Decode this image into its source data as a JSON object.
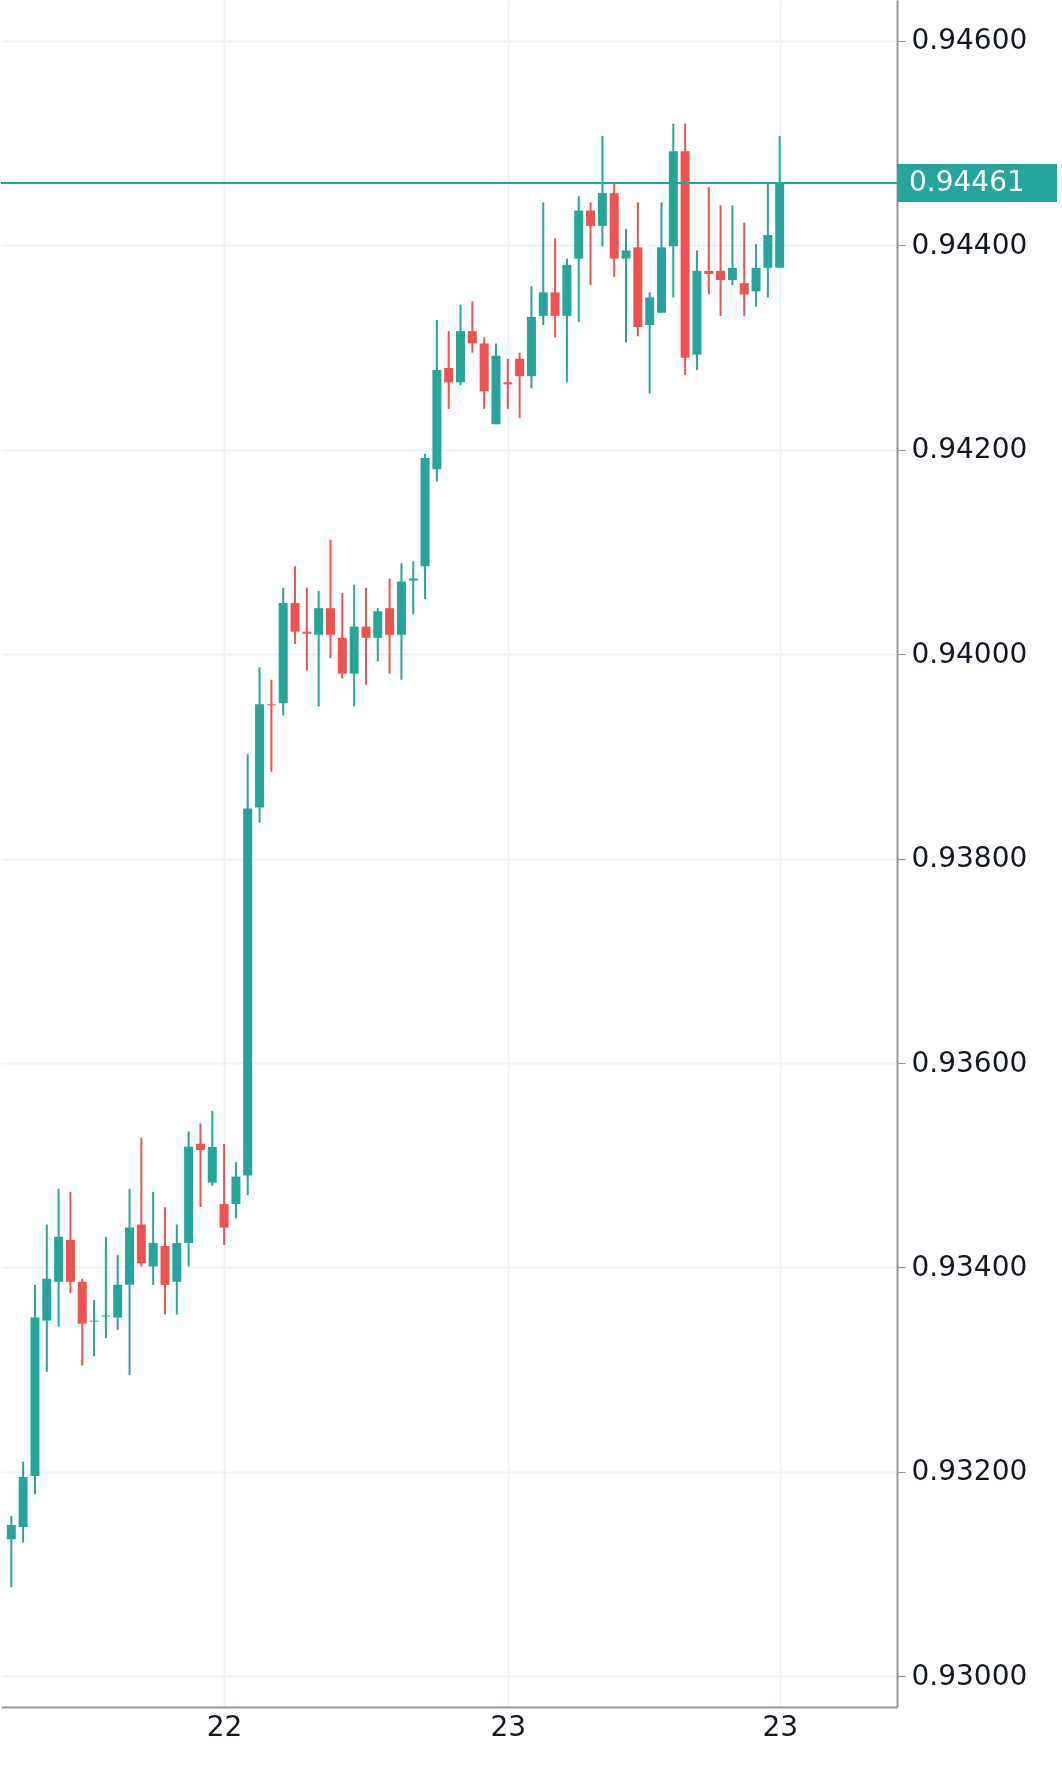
{
  "chart_data": {
    "type": "candlestick",
    "categories": [
      null,
      null,
      null,
      null,
      null,
      null,
      null,
      null,
      null,
      null,
      null,
      null,
      null,
      null,
      null,
      null,
      null,
      null,
      "22",
      null,
      null,
      null,
      null,
      null,
      null,
      null,
      null,
      null,
      null,
      null,
      null,
      null,
      null,
      null,
      null,
      null,
      null,
      null,
      null,
      null,
      null,
      null,
      "23",
      null,
      null,
      null,
      null,
      null,
      null,
      null,
      null,
      null,
      null,
      null,
      null,
      null,
      null,
      null,
      null,
      null,
      null,
      null,
      null,
      null,
      null,
      "23"
    ],
    "ohlc": [
      [
        0.93134,
        0.93157,
        0.93087,
        0.93148
      ],
      [
        0.93146,
        0.9321,
        0.93131,
        0.93195
      ],
      [
        0.93196,
        0.93383,
        0.93178,
        0.93351
      ],
      [
        0.93348,
        0.93442,
        0.93298,
        0.93389
      ],
      [
        0.93386,
        0.93477,
        0.93342,
        0.9343
      ],
      [
        0.93427,
        0.93474,
        0.93375,
        0.93386
      ],
      [
        0.93386,
        0.93389,
        0.93304,
        0.93345
      ],
      [
        0.93347,
        0.93368,
        0.93313,
        0.93348
      ],
      [
        0.93352,
        0.9343,
        0.93331,
        0.93353
      ],
      [
        0.93351,
        0.93412,
        0.93339,
        0.93383
      ],
      [
        0.93383,
        0.93477,
        0.93295,
        0.93439
      ],
      [
        0.93442,
        0.93527,
        0.93401,
        0.93404
      ],
      [
        0.93401,
        0.93474,
        0.93383,
        0.93424
      ],
      [
        0.93421,
        0.93459,
        0.93354,
        0.93383
      ],
      [
        0.93386,
        0.93442,
        0.93354,
        0.93424
      ],
      [
        0.93424,
        0.93533,
        0.93401,
        0.93518
      ],
      [
        0.93521,
        0.93541,
        0.93459,
        0.93515
      ],
      [
        0.93483,
        0.93553,
        0.9348,
        0.93518
      ],
      [
        0.93462,
        0.93521,
        0.93422,
        0.93439
      ],
      [
        0.93462,
        0.93503,
        0.93448,
        0.93489
      ],
      [
        0.9349,
        0.93902,
        0.93471,
        0.93849
      ],
      [
        0.9385,
        0.93987,
        0.93835,
        0.93951
      ],
      [
        0.93951,
        0.93975,
        0.93885,
        0.9395
      ],
      [
        0.93952,
        0.94065,
        0.9394,
        0.9405
      ],
      [
        0.9405,
        0.94086,
        0.9401,
        0.94022
      ],
      [
        0.94022,
        0.94065,
        0.93984,
        0.9402
      ],
      [
        0.94019,
        0.94062,
        0.93949,
        0.94045
      ],
      [
        0.94045,
        0.94112,
        0.93996,
        0.94019
      ],
      [
        0.94016,
        0.9406,
        0.93976,
        0.93981
      ],
      [
        0.93981,
        0.94068,
        0.93949,
        0.94027
      ],
      [
        0.94027,
        0.94065,
        0.9397,
        0.94016
      ],
      [
        0.94016,
        0.94045,
        0.93993,
        0.94042
      ],
      [
        0.94045,
        0.94074,
        0.93981,
        0.94019
      ],
      [
        0.94019,
        0.94089,
        0.93975,
        0.94071
      ],
      [
        0.94072,
        0.94091,
        0.94039,
        0.94074
      ],
      [
        0.94086,
        0.94196,
        0.94054,
        0.94192
      ],
      [
        0.94181,
        0.94327,
        0.94169,
        0.94278
      ],
      [
        0.9428,
        0.94316,
        0.9424,
        0.94266
      ],
      [
        0.94266,
        0.94342,
        0.94263,
        0.94316
      ],
      [
        0.94316,
        0.94345,
        0.94295,
        0.94304
      ],
      [
        0.94304,
        0.9431,
        0.9424,
        0.94257
      ],
      [
        0.94225,
        0.94304,
        0.94225,
        0.94292
      ],
      [
        0.94266,
        0.94289,
        0.9424,
        0.94264
      ],
      [
        0.94289,
        0.94295,
        0.94231,
        0.94272
      ],
      [
        0.94272,
        0.9436,
        0.9426,
        0.9433
      ],
      [
        0.94331,
        0.94442,
        0.94322,
        0.94354
      ],
      [
        0.94354,
        0.94407,
        0.9431,
        0.94331
      ],
      [
        0.94331,
        0.94387,
        0.94266,
        0.94381
      ],
      [
        0.94387,
        0.94448,
        0.94325,
        0.94434
      ],
      [
        0.94434,
        0.94442,
        0.94361,
        0.94419
      ],
      [
        0.94419,
        0.94507,
        0.94399,
        0.94451
      ],
      [
        0.94451,
        0.9446,
        0.94369,
        0.94387
      ],
      [
        0.94387,
        0.94416,
        0.94305,
        0.94395
      ],
      [
        0.94398,
        0.94442,
        0.94311,
        0.9432
      ],
      [
        0.94322,
        0.94354,
        0.94255,
        0.94349
      ],
      [
        0.94334,
        0.94442,
        0.94334,
        0.94398
      ],
      [
        0.94399,
        0.94519,
        0.94349,
        0.94492
      ],
      [
        0.94492,
        0.94519,
        0.94273,
        0.9429
      ],
      [
        0.94293,
        0.94395,
        0.94278,
        0.94375
      ],
      [
        0.94375,
        0.94457,
        0.94352,
        0.94372
      ],
      [
        0.94375,
        0.94439,
        0.94331,
        0.94366
      ],
      [
        0.94366,
        0.94439,
        0.94361,
        0.94378
      ],
      [
        0.94363,
        0.94422,
        0.94331,
        0.94352
      ],
      [
        0.94355,
        0.94401,
        0.9434,
        0.94378
      ],
      [
        0.94378,
        0.9446,
        0.94349,
        0.9441
      ],
      [
        0.94378,
        0.94507,
        0.94378,
        0.94461
      ]
    ],
    "colors": [
      "#26a69a",
      "#26a69a",
      "#26a69a",
      "#26a69a",
      "#26a69a",
      "#ef5350",
      "#ef5350",
      "#26a69a",
      "#26a69a",
      "#26a69a",
      "#26a69a",
      "#ef5350",
      "#26a69a",
      "#ef5350",
      "#26a69a",
      "#26a69a",
      "#ef5350",
      "#26a69a",
      "#ef5350",
      "#26a69a",
      "#26a69a",
      "#26a69a",
      "#ef5350",
      "#26a69a",
      "#ef5350",
      "#ef5350",
      "#26a69a",
      "#ef5350",
      "#ef5350",
      "#26a69a",
      "#ef5350",
      "#26a69a",
      "#ef5350",
      "#26a69a",
      "#26a69a",
      "#26a69a",
      "#26a69a",
      "#ef5350",
      "#26a69a",
      "#ef5350",
      "#ef5350",
      "#26a69a",
      "#ef5350",
      "#ef5350",
      "#26a69a",
      "#26a69a",
      "#ef5350",
      "#26a69a",
      "#26a69a",
      "#ef5350",
      "#26a69a",
      "#ef5350",
      "#26a69a",
      "#ef5350",
      "#26a69a",
      "#26a69a",
      "#26a69a",
      "#ef5350",
      "#26a69a",
      "#ef5350",
      "#ef5350",
      "#26a69a",
      "#ef5350",
      "#26a69a",
      "#26a69a",
      "#26a69a"
    ],
    "ylim": [
      0.9297,
      0.9464
    ],
    "yticks": [
      {
        "value": 0.93,
        "label": "0.93000"
      },
      {
        "value": 0.932,
        "label": "0.93200"
      },
      {
        "value": 0.934,
        "label": "0.93400"
      },
      {
        "value": 0.936,
        "label": "0.93600"
      },
      {
        "value": 0.938,
        "label": "0.93800"
      },
      {
        "value": 0.94,
        "label": "0.94000"
      },
      {
        "value": 0.942,
        "label": "0.94200"
      },
      {
        "value": 0.944,
        "label": "0.94400"
      },
      {
        "value": 0.946,
        "label": "0.94600"
      }
    ],
    "ref_lines": [
      {
        "axis": "y",
        "value": 0.94461,
        "label": "0.94461",
        "color": "#26a69a"
      }
    ],
    "grid": true
  }
}
